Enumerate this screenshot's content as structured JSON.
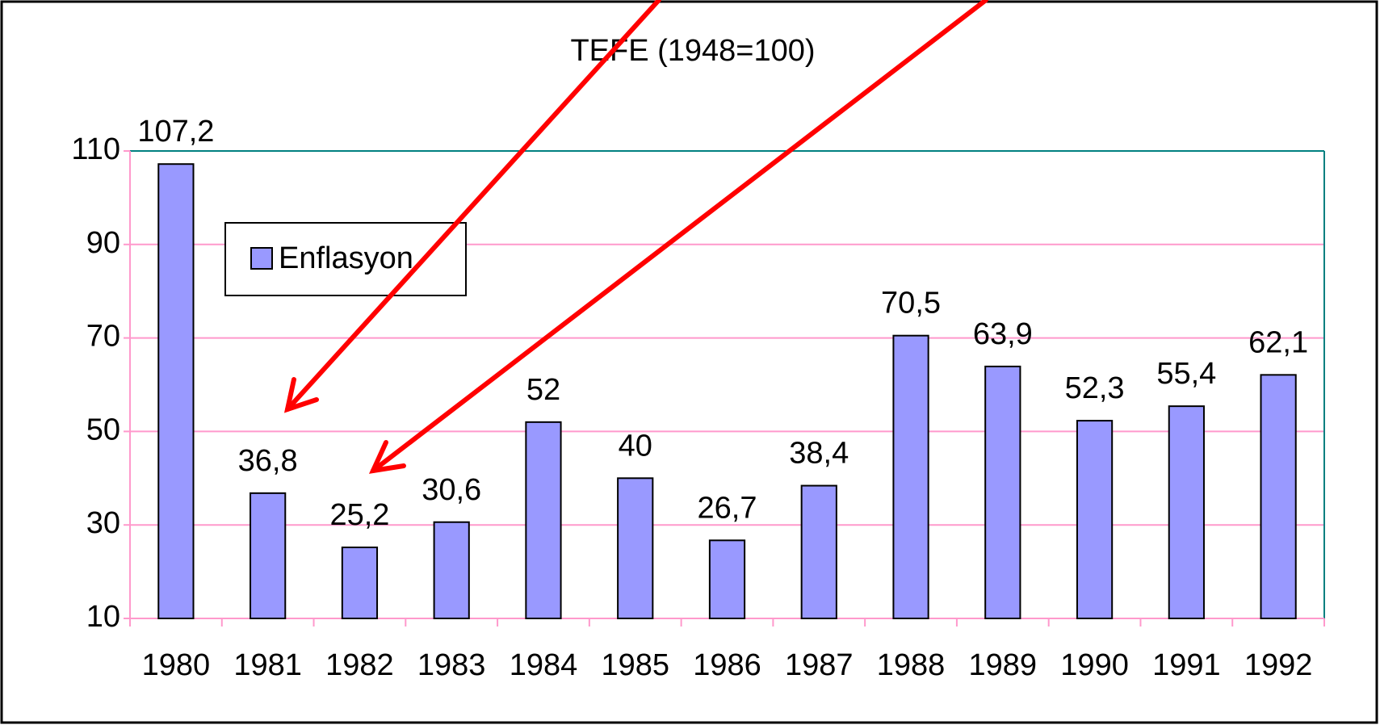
{
  "chart_data": {
    "type": "bar",
    "title": "TEFE (1948=100)",
    "categories": [
      "1980",
      "1981",
      "1982",
      "1983",
      "1984",
      "1985",
      "1986",
      "1987",
      "1988",
      "1989",
      "1990",
      "1991",
      "1992"
    ],
    "series": [
      {
        "name": "Enflasyon",
        "color": "#9999ff",
        "values": [
          107.2,
          36.8,
          25.2,
          30.6,
          52,
          40,
          26.7,
          38.4,
          70.5,
          63.9,
          52.3,
          55.4,
          62.1
        ],
        "value_labels": [
          "107,2",
          "36,8",
          "25,2",
          "30,6",
          "52",
          "40",
          "26,7",
          "38,4",
          "70,5",
          "63,9",
          "52,3",
          "55,4",
          "62,1"
        ]
      }
    ],
    "ylim": [
      10,
      110
    ],
    "yticks": [
      10,
      30,
      50,
      70,
      90,
      110
    ],
    "grid": true,
    "grid_color": "#ff99cc",
    "legend": "upper left"
  }
}
